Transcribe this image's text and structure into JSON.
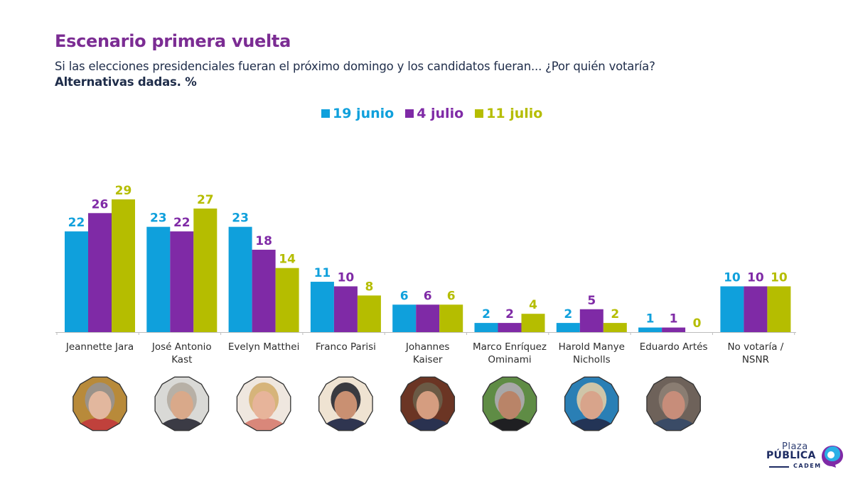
{
  "header": {
    "title": "Escenario primera vuelta",
    "subtitle": "Si las elecciones presidenciales fueran el próximo domingo y los candidatos fueran... ¿Por quién votaría?",
    "subtitle_bold": "Alternativas dadas. %"
  },
  "legend": [
    {
      "label": "19 junio",
      "color": "#0fa0dc"
    },
    {
      "label": "4 julio",
      "color": "#7f2aa6"
    },
    {
      "label": "11 julio",
      "color": "#b5bd00"
    }
  ],
  "chart_data": {
    "type": "bar",
    "title": "Escenario primera vuelta",
    "xlabel": "",
    "ylabel": "%",
    "ylim": [
      0,
      30
    ],
    "grid": false,
    "legend_position": "top-center",
    "categories": [
      [
        "Jeannette Jara"
      ],
      [
        "José Antonio",
        "Kast"
      ],
      [
        "Evelyn Matthei"
      ],
      [
        "Franco Parisi"
      ],
      [
        "Johannes",
        "Kaiser"
      ],
      [
        "Marco Enríquez",
        "Ominami"
      ],
      [
        "Harold Manye",
        "Nicholls"
      ],
      [
        "Eduardo Artés"
      ],
      [
        "No votaría /",
        "NSNR"
      ]
    ],
    "series": [
      {
        "name": "19 junio",
        "color": "#0fa0dc",
        "values": [
          22,
          23,
          23,
          11,
          6,
          2,
          2,
          1,
          10
        ]
      },
      {
        "name": "4 julio",
        "color": "#7f2aa6",
        "values": [
          26,
          22,
          18,
          10,
          6,
          2,
          5,
          1,
          10
        ]
      },
      {
        "name": "11 julio",
        "color": "#b5bd00",
        "values": [
          29,
          27,
          14,
          8,
          6,
          4,
          2,
          0,
          10
        ]
      }
    ]
  },
  "photos": [
    {
      "name": "Jeannette Jara",
      "bg": "#b88a3a",
      "skin": "#e2b79e",
      "hair": "#9a9289",
      "shirt": "#c0413c"
    },
    {
      "name": "José Antonio Kast",
      "bg": "#d9d9d6",
      "skin": "#d9a98a",
      "hair": "#b7b0a6",
      "shirt": "#3b3b45"
    },
    {
      "name": "Evelyn Matthei",
      "bg": "#efe7df",
      "skin": "#e7b49a",
      "hair": "#d6b47a",
      "shirt": "#d9877a"
    },
    {
      "name": "Franco Parisi",
      "bg": "#efe3d2",
      "skin": "#c99072",
      "hair": "#3a3a40",
      "shirt": "#2f3550"
    },
    {
      "name": "Johannes Kaiser",
      "bg": "#6b3524",
      "skin": "#d59d80",
      "hair": "#6b5a45",
      "shirt": "#2a3250"
    },
    {
      "name": "Marco Enríquez Ominami",
      "bg": "#5f8c45",
      "skin": "#b98468",
      "hair": "#a8a8a8",
      "shirt": "#1f1f22"
    },
    {
      "name": "Harold Manye Nicholls",
      "bg": "#2a7fb5",
      "skin": "#d8a48b",
      "hair": "#cfc5a8",
      "shirt": "#233456"
    },
    {
      "name": "Eduardo Artés",
      "bg": "#6e625a",
      "skin": "#c78d7a",
      "hair": "#8a7d72",
      "shirt": "#3a4b66"
    }
  ],
  "logo": {
    "line1": "Plaza",
    "line2": "PÚBLICA",
    "line3": "CADEM"
  }
}
